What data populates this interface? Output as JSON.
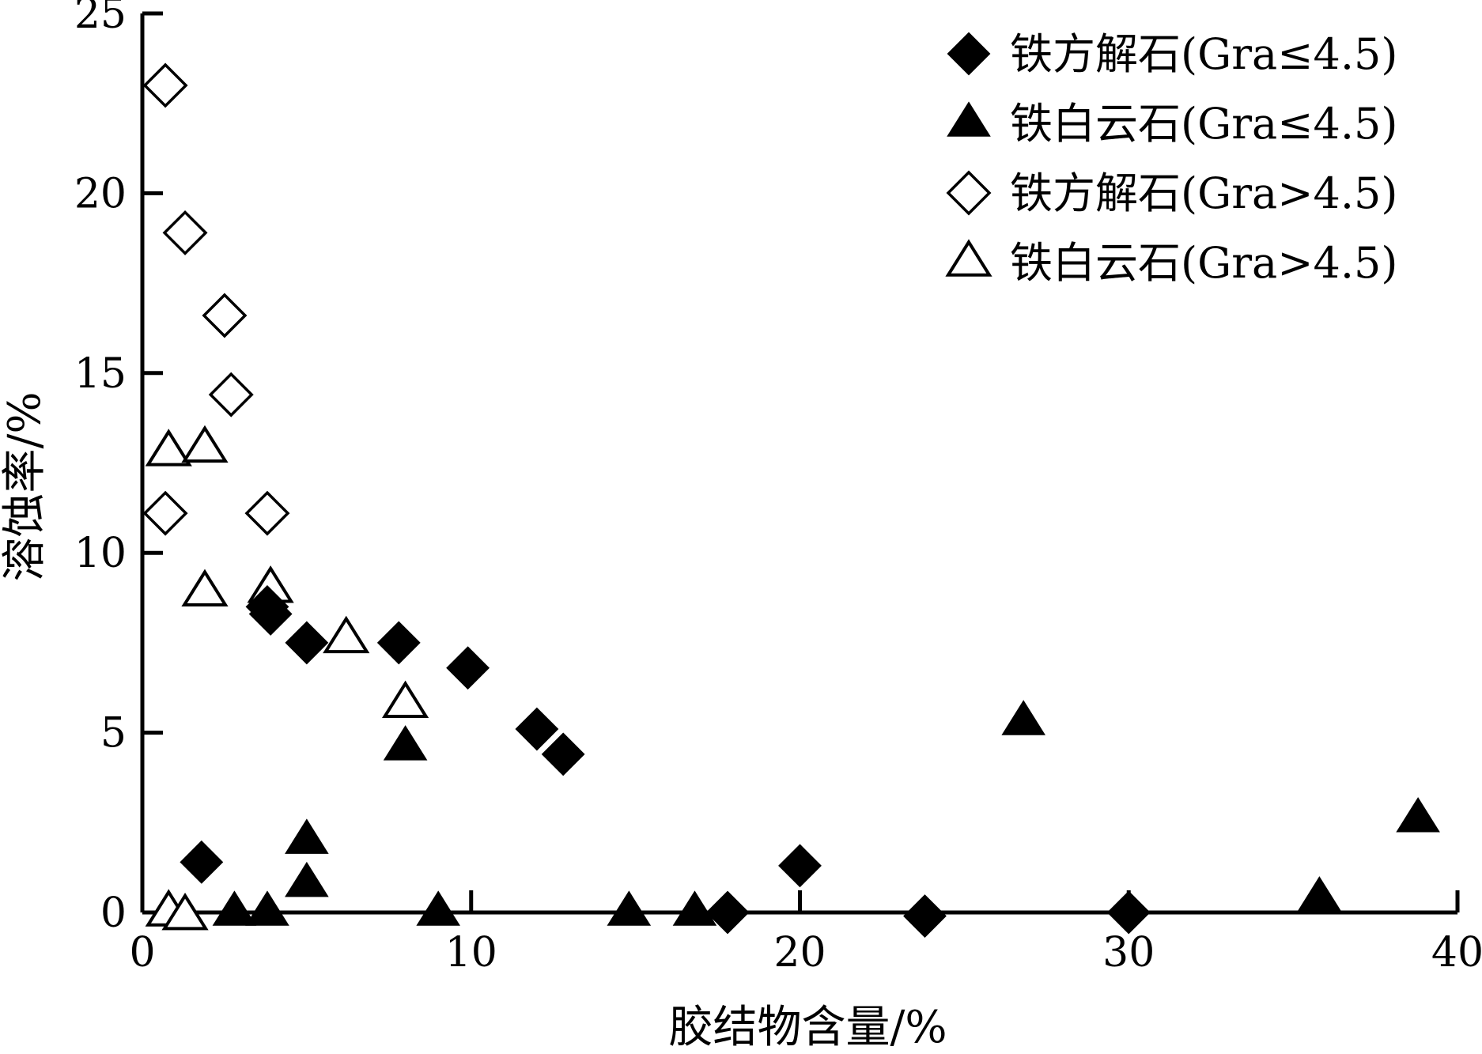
{
  "chart_data": {
    "type": "scatter",
    "xlabel": "胶结物含量/%",
    "ylabel": "溶蚀率/%",
    "xlim": [
      0,
      40
    ],
    "ylim": [
      0,
      25
    ],
    "x_ticks": [
      "0",
      "10",
      "20",
      "30",
      "40"
    ],
    "y_ticks": [
      "0",
      "5",
      "10",
      "15",
      "20",
      "25"
    ],
    "grid": false,
    "legend_position": "top-right",
    "series": [
      {
        "name": "铁方解石(Gra≤4.5)",
        "marker": "diamond-filled",
        "color": "#000000",
        "points": [
          {
            "x": 3.8,
            "y": 8.5
          },
          {
            "x": 3.9,
            "y": 8.3
          },
          {
            "x": 5.0,
            "y": 7.5
          },
          {
            "x": 7.8,
            "y": 7.5
          },
          {
            "x": 9.9,
            "y": 6.8
          },
          {
            "x": 12.0,
            "y": 5.1
          },
          {
            "x": 12.8,
            "y": 4.4
          },
          {
            "x": 1.8,
            "y": 1.4
          },
          {
            "x": 17.8,
            "y": 0.0
          },
          {
            "x": 20.0,
            "y": 1.3
          },
          {
            "x": 23.8,
            "y": -0.1
          },
          {
            "x": 30.0,
            "y": 0.0
          }
        ]
      },
      {
        "name": "铁白云石(Gra≤4.5)",
        "marker": "triangle-filled",
        "color": "#000000",
        "points": [
          {
            "x": 8.0,
            "y": 4.6
          },
          {
            "x": 5.0,
            "y": 2.0
          },
          {
            "x": 5.0,
            "y": 0.8
          },
          {
            "x": 2.8,
            "y": 0.0
          },
          {
            "x": 3.8,
            "y": 0.0
          },
          {
            "x": 9.0,
            "y": 0.0
          },
          {
            "x": 14.8,
            "y": 0.0
          },
          {
            "x": 16.8,
            "y": 0.0
          },
          {
            "x": 26.8,
            "y": 5.3
          },
          {
            "x": 35.8,
            "y": 0.4
          },
          {
            "x": 38.8,
            "y": 2.6
          }
        ]
      },
      {
        "name": "铁方解石(Gra>4.5)",
        "marker": "diamond-open",
        "color": "#000000",
        "points": [
          {
            "x": 0.7,
            "y": 23.0
          },
          {
            "x": 1.3,
            "y": 18.9
          },
          {
            "x": 2.5,
            "y": 16.6
          },
          {
            "x": 2.7,
            "y": 14.4
          },
          {
            "x": 0.7,
            "y": 11.1
          },
          {
            "x": 3.8,
            "y": 11.1
          }
        ]
      },
      {
        "name": "铁白云石(Gra>4.5)",
        "marker": "triangle-open",
        "color": "#000000",
        "points": [
          {
            "x": 0.8,
            "y": 12.8
          },
          {
            "x": 1.9,
            "y": 12.9
          },
          {
            "x": 1.9,
            "y": 8.9
          },
          {
            "x": 3.9,
            "y": 9.0
          },
          {
            "x": 6.2,
            "y": 7.6
          },
          {
            "x": 8.0,
            "y": 5.8
          },
          {
            "x": 0.8,
            "y": 0.0
          },
          {
            "x": 1.3,
            "y": -0.1
          }
        ]
      }
    ]
  }
}
